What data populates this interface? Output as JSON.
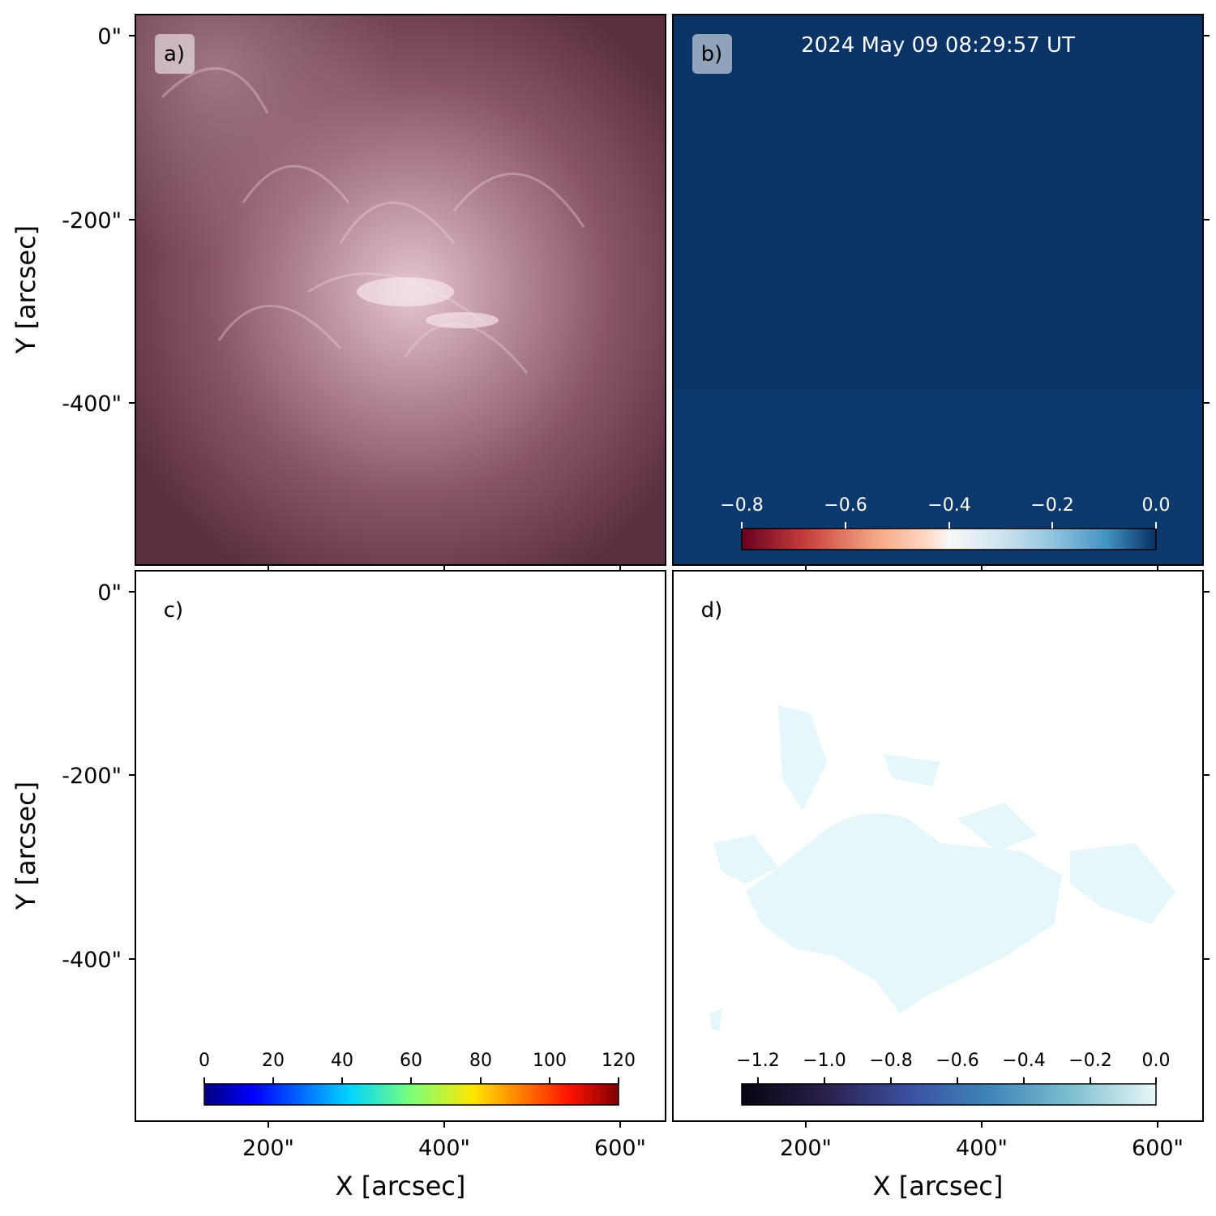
{
  "figure": {
    "timestamp": "2024 May 09 08:29:57 UT",
    "y_axis_title": "Y [arcsec]",
    "x_axis_title": "X [arcsec]",
    "y_ticks": [
      "0\"",
      "-200\"",
      "-400\""
    ],
    "x_ticks": [
      "200\"",
      "400\"",
      "600\""
    ]
  },
  "panels": {
    "a": {
      "label": "a)"
    },
    "b": {
      "label": "b)"
    },
    "c": {
      "label": "c)"
    },
    "d": {
      "label": "d)"
    }
  },
  "colorbars": {
    "b": {
      "ticks": [
        "−0.8",
        "−0.6",
        "−0.4",
        "−0.2",
        "0.0"
      ]
    },
    "c": {
      "ticks": [
        "0",
        "20",
        "40",
        "60",
        "80",
        "100",
        "120"
      ]
    },
    "d": {
      "ticks": [
        "−1.2",
        "−1.0",
        "−0.8",
        "−0.6",
        "−0.4",
        "−0.2",
        "0.0"
      ]
    }
  },
  "colors": {
    "panel_a_base": "#7a4756",
    "panel_b_base": "#0a3366",
    "panel_d_patch": "#e6f7fb"
  }
}
